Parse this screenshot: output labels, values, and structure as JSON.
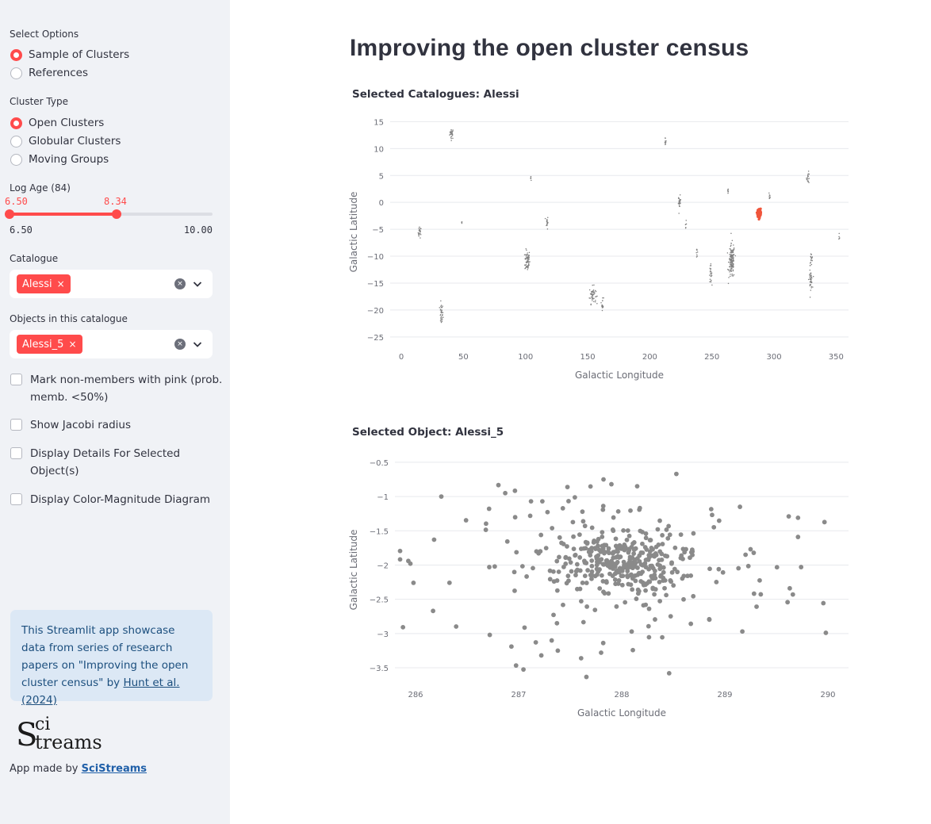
{
  "sidebar": {
    "select_options": {
      "label": "Select Options",
      "options": [
        "Sample of Clusters",
        "References"
      ],
      "selected": 0
    },
    "cluster_type": {
      "label": "Cluster Type",
      "options": [
        "Open Clusters",
        "Globular Clusters",
        "Moving Groups"
      ],
      "selected": 0
    },
    "log_age": {
      "label": "Log Age (84)",
      "min": 6.5,
      "max": 10.0,
      "low": 6.5,
      "high": 8.34,
      "low_label": "6.50",
      "high_label": "8.34",
      "min_label": "6.50",
      "max_label": "10.00"
    },
    "catalogue": {
      "label": "Catalogue",
      "tag": "Alessi",
      "tag_close": "×"
    },
    "objects": {
      "label": "Objects in this catalogue",
      "tag": "Alessi_5",
      "tag_close": "×"
    },
    "clear_glyph": "×",
    "checkboxes": [
      {
        "line1": "Mark non-members with pink (prob.",
        "line2": "memb. <50%)",
        "checked": false
      },
      {
        "line1": "Show Jacobi radius",
        "line2": "",
        "checked": false
      },
      {
        "line1": "Display Details For Selected",
        "line2": "Object(s)",
        "checked": false
      },
      {
        "line1": "Display Color-Magnitude Diagram",
        "line2": "",
        "checked": false
      }
    ],
    "info": {
      "text": "This Streamlit app showcase data from series of research papers on \"Improving the open cluster census\" by ",
      "link": "Hunt et al. (2024)"
    },
    "logo": {
      "s": "S",
      "ci": "ci",
      "treams": "treams"
    },
    "made_by": {
      "text": "App made by ",
      "link": "SciStreams"
    }
  },
  "main": {
    "title": "Improving the open cluster census"
  },
  "chart_data": [
    {
      "type": "scatter",
      "title": "Selected Catalogues: Alessi",
      "xlabel": "Galactic Longitude",
      "ylabel": "Galactic Latitude",
      "xlim": [
        -9,
        360
      ],
      "ylim": [
        -26.5,
        15.5
      ],
      "x_ticks": [
        0,
        50,
        100,
        150,
        200,
        250,
        300,
        350
      ],
      "y_ticks": [
        15,
        10,
        5,
        0,
        -5,
        -10,
        -15,
        -20,
        -25
      ],
      "grid": true,
      "colors": {
        "points": "#7f7f7f",
        "highlight": "#f0553b"
      },
      "clusters": [
        {
          "l": 40.5,
          "b": 12.8,
          "sl": 0.8,
          "sb": 0.5,
          "n": 25
        },
        {
          "l": 14.8,
          "b": -5.6,
          "sl": 0.6,
          "sb": 0.5,
          "n": 25
        },
        {
          "l": 32.2,
          "b": -20.8,
          "sl": 0.7,
          "sb": 1.0,
          "n": 35
        },
        {
          "l": 48.5,
          "b": -3.8,
          "sl": 0.2,
          "sb": 0.2,
          "n": 4
        },
        {
          "l": 104.3,
          "b": 4.3,
          "sl": 0.2,
          "sb": 0.3,
          "n": 5
        },
        {
          "l": 101.5,
          "b": -10.8,
          "sl": 1.0,
          "sb": 1.0,
          "n": 70
        },
        {
          "l": 117.3,
          "b": -3.7,
          "sl": 0.4,
          "sb": 0.6,
          "n": 18
        },
        {
          "l": 154.0,
          "b": -17.2,
          "sl": 1.3,
          "sb": 0.8,
          "n": 50
        },
        {
          "l": 162.0,
          "b": -18.8,
          "sl": 0.4,
          "sb": 0.6,
          "n": 15
        },
        {
          "l": 212.6,
          "b": 11.3,
          "sl": 0.3,
          "sb": 0.4,
          "n": 10
        },
        {
          "l": 224.0,
          "b": 0.0,
          "sl": 0.5,
          "sb": 0.6,
          "n": 25
        },
        {
          "l": 229.0,
          "b": -4.0,
          "sl": 0.3,
          "sb": 0.3,
          "n": 6
        },
        {
          "l": 238.0,
          "b": -9.3,
          "sl": 0.3,
          "sb": 0.4,
          "n": 8
        },
        {
          "l": 249.0,
          "b": -13.3,
          "sl": 0.5,
          "sb": 0.8,
          "n": 25
        },
        {
          "l": 263.0,
          "b": 1.7,
          "sl": 0.3,
          "sb": 0.4,
          "n": 8
        },
        {
          "l": 266.0,
          "b": -11.0,
          "sl": 1.2,
          "sb": 1.6,
          "n": 140
        },
        {
          "l": 296.5,
          "b": 1.3,
          "sl": 0.3,
          "sb": 0.4,
          "n": 8
        },
        {
          "l": 327.5,
          "b": 4.6,
          "sl": 0.6,
          "sb": 0.5,
          "n": 18
        },
        {
          "l": 330.0,
          "b": -10.5,
          "sl": 0.6,
          "sb": 0.6,
          "n": 18
        },
        {
          "l": 329.5,
          "b": -14.4,
          "sl": 0.7,
          "sb": 0.8,
          "n": 40
        },
        {
          "l": 352.5,
          "b": -6.3,
          "sl": 0.2,
          "sb": 0.3,
          "n": 5
        }
      ],
      "highlight": {
        "l": 288.0,
        "b": -2.0,
        "sl": 0.6,
        "sb": 0.4,
        "n": 150
      }
    },
    {
      "type": "scatter",
      "title": "Selected Object: Alessi_5",
      "xlabel": "Galactic Longitude",
      "ylabel": "Galactic Latitude",
      "xlim": [
        285.8,
        290.2
      ],
      "ylim": [
        -3.72,
        -0.42
      ],
      "x_ticks": [
        286,
        287,
        288,
        289,
        290
      ],
      "y_ticks": [
        -0.5,
        -1,
        -1.5,
        -2,
        -2.5,
        -3,
        -3.5
      ],
      "grid": true,
      "colors": {
        "points": "#8a8a8a"
      },
      "core": {
        "l": 288.0,
        "b": -1.97,
        "sl": 0.28,
        "sb": 0.2,
        "n": 250
      },
      "halo": {
        "l": 288.0,
        "b": -2.0,
        "sl": 0.75,
        "sb": 0.52,
        "n": 190
      },
      "points": [
        [
          288.53,
          -0.67
        ],
        [
          287.9,
          -0.82
        ],
        [
          288.15,
          -0.85
        ],
        [
          286.25,
          -1.0
        ],
        [
          286.87,
          -0.95
        ],
        [
          288.46,
          -3.58
        ],
        [
          289.98,
          -2.99
        ],
        [
          287.22,
          -3.32
        ],
        [
          287.38,
          -3.25
        ],
        [
          286.93,
          -3.19
        ],
        [
          286.72,
          -3.02
        ],
        [
          289.17,
          -2.97
        ],
        [
          285.93,
          -1.94
        ],
        [
          285.95,
          -1.98
        ],
        [
          285.98,
          -2.26
        ],
        [
          286.18,
          -1.63
        ],
        [
          286.17,
          -2.67
        ],
        [
          289.74,
          -2.03
        ],
        [
          289.62,
          -1.29
        ],
        [
          289.71,
          -1.31
        ],
        [
          289.71,
          -1.59
        ],
        [
          289.66,
          -2.43
        ],
        [
          289.63,
          -2.34
        ],
        [
          287.8,
          -3.28
        ],
        [
          287.23,
          -1.07
        ],
        [
          287.12,
          -1.07
        ]
      ]
    }
  ]
}
